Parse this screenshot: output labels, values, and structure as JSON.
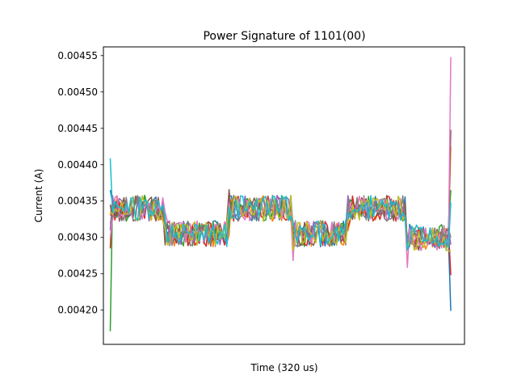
{
  "chart_data": {
    "type": "line",
    "title": "Power Signature of 1101(00)",
    "xlabel": "Time (320 us)",
    "ylabel": "Current (A)",
    "xlim": [
      -3,
      155
    ],
    "ylim": [
      0.004153,
      0.004562
    ],
    "yticks": [
      "0.00420",
      "0.00425",
      "0.00430",
      "0.00435",
      "0.00440",
      "0.00445",
      "0.00450",
      "0.00455"
    ],
    "xticks": [],
    "grid": false,
    "legend": "none",
    "n_points": 150,
    "segments": [
      {
        "start": 0,
        "end": 24,
        "level": 0.00434
      },
      {
        "start": 24,
        "end": 52,
        "level": 0.004305
      },
      {
        "start": 52,
        "end": 80,
        "level": 0.00434
      },
      {
        "start": 80,
        "end": 104,
        "level": 0.004305
      },
      {
        "start": 104,
        "end": 130,
        "level": 0.00434
      },
      {
        "start": 130,
        "end": 150,
        "level": 0.0043
      }
    ],
    "series": [
      {
        "color": "#1f77b4",
        "start": 0.004365,
        "end": 0.004199
      },
      {
        "color": "#ff7f0e",
        "start": 0.00433,
        "end": 0.004425
      },
      {
        "color": "#2ca02c",
        "start": 0.004171,
        "end": 0.004365
      },
      {
        "color": "#d62728",
        "start": 0.004285,
        "end": 0.004248
      },
      {
        "color": "#9467bd",
        "start": 0.00431,
        "end": 0.00429
      },
      {
        "color": "#8c564b",
        "start": 0.004345,
        "end": 0.004448
      },
      {
        "color": "#e377c2",
        "start": 0.0043,
        "end": 0.004548
      },
      {
        "color": "#7f7f7f",
        "start": 0.00432,
        "end": 0.0043
      },
      {
        "color": "#bcbd22",
        "start": 0.004335,
        "end": 0.00428
      },
      {
        "color": "#17becf",
        "start": 0.004409,
        "end": 0.004348
      }
    ]
  }
}
